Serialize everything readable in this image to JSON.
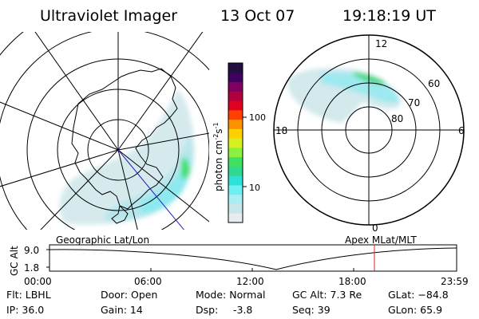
{
  "header": {
    "title": "Ultraviolet Imager",
    "date": "13 Oct 07",
    "time": "19:18:19 UT"
  },
  "colorbar": {
    "unit_label": "photon cm",
    "unit_exp1": "-2",
    "unit_s": "s",
    "unit_exp2": "-1",
    "tick_100": "100",
    "tick_10": "10",
    "colors": [
      "#e8ecee",
      "#c6e6ea",
      "#a8eef2",
      "#6ff0f0",
      "#2ee0d8",
      "#30d890",
      "#40e060",
      "#8cf040",
      "#d8f020",
      "#ffd000",
      "#ff9000",
      "#ff4000",
      "#e00020",
      "#b00040",
      "#800060",
      "#400060",
      "#201040"
    ]
  },
  "geo_map": {
    "label": "Geographic Lat/Lon"
  },
  "apex_map": {
    "label": "Apex  MLat/MLT",
    "mlt_top": "12",
    "mlt_left": "18",
    "mlt_right": "6",
    "mlt_bottom": "0",
    "mlat_60": "60",
    "mlat_70": "70",
    "mlat_80": "80"
  },
  "altitude_plot": {
    "ylabel": "GC Alt",
    "ytick_top": "9.0",
    "ytick_bottom": "1.8",
    "xticks": [
      "00:00",
      "06:00",
      "12:00",
      "18:00",
      "23:59"
    ],
    "marker_color": "#e02020"
  },
  "status": {
    "flt": "Flt: LBHL",
    "ip": "IP: 36.0",
    "door": "Door: Open",
    "gain": "Gain: 14",
    "mode": "Mode: Normal",
    "dsp_label": "Dsp:",
    "dsp_value": "-3.8",
    "gc_alt": "GC Alt: 7.3 Re",
    "seq": "Seq: 39",
    "glat": "GLat: −84.8",
    "glon": "GLon:  65.9"
  }
}
